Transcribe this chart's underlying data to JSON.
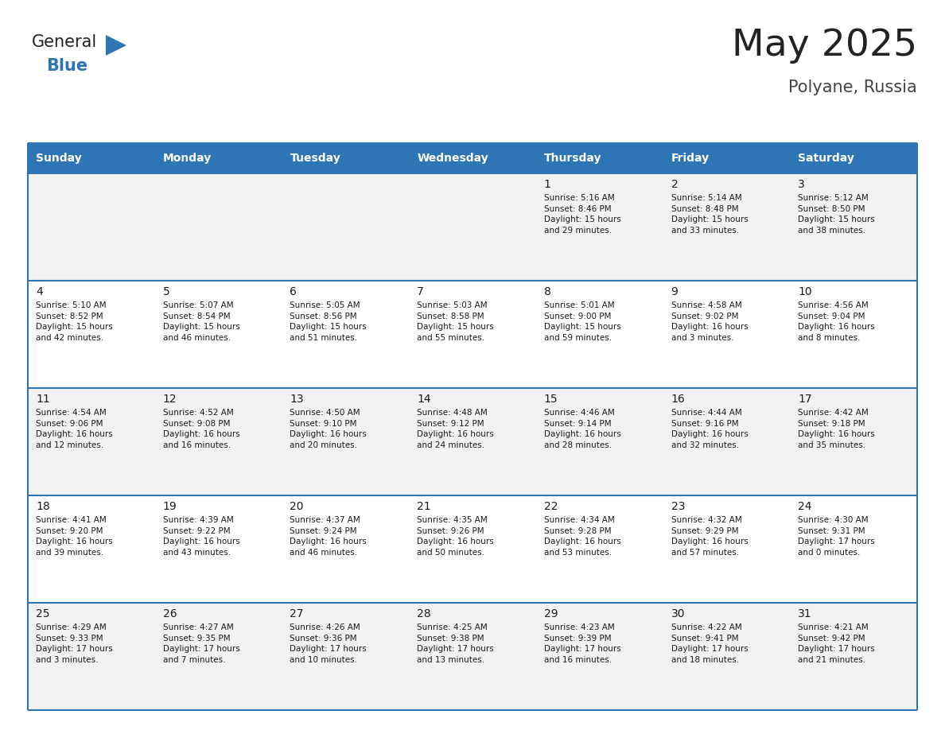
{
  "title": "May 2025",
  "subtitle": "Polyane, Russia",
  "days_of_week": [
    "Sunday",
    "Monday",
    "Tuesday",
    "Wednesday",
    "Thursday",
    "Friday",
    "Saturday"
  ],
  "header_bg": "#2E75B6",
  "header_text": "#FFFFFF",
  "cell_bg_odd": "#F2F2F2",
  "cell_bg_even": "#FFFFFF",
  "cell_text": "#1a1a1a",
  "day_num_color": "#1a1a1a",
  "border_color": "#2E75B6",
  "calendar_data": [
    [
      {
        "day": "",
        "sunrise": "",
        "sunset": "",
        "daylight": ""
      },
      {
        "day": "",
        "sunrise": "",
        "sunset": "",
        "daylight": ""
      },
      {
        "day": "",
        "sunrise": "",
        "sunset": "",
        "daylight": ""
      },
      {
        "day": "",
        "sunrise": "",
        "sunset": "",
        "daylight": ""
      },
      {
        "day": "1",
        "sunrise": "Sunrise: 5:16 AM",
        "sunset": "Sunset: 8:46 PM",
        "daylight": "Daylight: 15 hours\nand 29 minutes."
      },
      {
        "day": "2",
        "sunrise": "Sunrise: 5:14 AM",
        "sunset": "Sunset: 8:48 PM",
        "daylight": "Daylight: 15 hours\nand 33 minutes."
      },
      {
        "day": "3",
        "sunrise": "Sunrise: 5:12 AM",
        "sunset": "Sunset: 8:50 PM",
        "daylight": "Daylight: 15 hours\nand 38 minutes."
      }
    ],
    [
      {
        "day": "4",
        "sunrise": "Sunrise: 5:10 AM",
        "sunset": "Sunset: 8:52 PM",
        "daylight": "Daylight: 15 hours\nand 42 minutes."
      },
      {
        "day": "5",
        "sunrise": "Sunrise: 5:07 AM",
        "sunset": "Sunset: 8:54 PM",
        "daylight": "Daylight: 15 hours\nand 46 minutes."
      },
      {
        "day": "6",
        "sunrise": "Sunrise: 5:05 AM",
        "sunset": "Sunset: 8:56 PM",
        "daylight": "Daylight: 15 hours\nand 51 minutes."
      },
      {
        "day": "7",
        "sunrise": "Sunrise: 5:03 AM",
        "sunset": "Sunset: 8:58 PM",
        "daylight": "Daylight: 15 hours\nand 55 minutes."
      },
      {
        "day": "8",
        "sunrise": "Sunrise: 5:01 AM",
        "sunset": "Sunset: 9:00 PM",
        "daylight": "Daylight: 15 hours\nand 59 minutes."
      },
      {
        "day": "9",
        "sunrise": "Sunrise: 4:58 AM",
        "sunset": "Sunset: 9:02 PM",
        "daylight": "Daylight: 16 hours\nand 3 minutes."
      },
      {
        "day": "10",
        "sunrise": "Sunrise: 4:56 AM",
        "sunset": "Sunset: 9:04 PM",
        "daylight": "Daylight: 16 hours\nand 8 minutes."
      }
    ],
    [
      {
        "day": "11",
        "sunrise": "Sunrise: 4:54 AM",
        "sunset": "Sunset: 9:06 PM",
        "daylight": "Daylight: 16 hours\nand 12 minutes."
      },
      {
        "day": "12",
        "sunrise": "Sunrise: 4:52 AM",
        "sunset": "Sunset: 9:08 PM",
        "daylight": "Daylight: 16 hours\nand 16 minutes."
      },
      {
        "day": "13",
        "sunrise": "Sunrise: 4:50 AM",
        "sunset": "Sunset: 9:10 PM",
        "daylight": "Daylight: 16 hours\nand 20 minutes."
      },
      {
        "day": "14",
        "sunrise": "Sunrise: 4:48 AM",
        "sunset": "Sunset: 9:12 PM",
        "daylight": "Daylight: 16 hours\nand 24 minutes."
      },
      {
        "day": "15",
        "sunrise": "Sunrise: 4:46 AM",
        "sunset": "Sunset: 9:14 PM",
        "daylight": "Daylight: 16 hours\nand 28 minutes."
      },
      {
        "day": "16",
        "sunrise": "Sunrise: 4:44 AM",
        "sunset": "Sunset: 9:16 PM",
        "daylight": "Daylight: 16 hours\nand 32 minutes."
      },
      {
        "day": "17",
        "sunrise": "Sunrise: 4:42 AM",
        "sunset": "Sunset: 9:18 PM",
        "daylight": "Daylight: 16 hours\nand 35 minutes."
      }
    ],
    [
      {
        "day": "18",
        "sunrise": "Sunrise: 4:41 AM",
        "sunset": "Sunset: 9:20 PM",
        "daylight": "Daylight: 16 hours\nand 39 minutes."
      },
      {
        "day": "19",
        "sunrise": "Sunrise: 4:39 AM",
        "sunset": "Sunset: 9:22 PM",
        "daylight": "Daylight: 16 hours\nand 43 minutes."
      },
      {
        "day": "20",
        "sunrise": "Sunrise: 4:37 AM",
        "sunset": "Sunset: 9:24 PM",
        "daylight": "Daylight: 16 hours\nand 46 minutes."
      },
      {
        "day": "21",
        "sunrise": "Sunrise: 4:35 AM",
        "sunset": "Sunset: 9:26 PM",
        "daylight": "Daylight: 16 hours\nand 50 minutes."
      },
      {
        "day": "22",
        "sunrise": "Sunrise: 4:34 AM",
        "sunset": "Sunset: 9:28 PM",
        "daylight": "Daylight: 16 hours\nand 53 minutes."
      },
      {
        "day": "23",
        "sunrise": "Sunrise: 4:32 AM",
        "sunset": "Sunset: 9:29 PM",
        "daylight": "Daylight: 16 hours\nand 57 minutes."
      },
      {
        "day": "24",
        "sunrise": "Sunrise: 4:30 AM",
        "sunset": "Sunset: 9:31 PM",
        "daylight": "Daylight: 17 hours\nand 0 minutes."
      }
    ],
    [
      {
        "day": "25",
        "sunrise": "Sunrise: 4:29 AM",
        "sunset": "Sunset: 9:33 PM",
        "daylight": "Daylight: 17 hours\nand 3 minutes."
      },
      {
        "day": "26",
        "sunrise": "Sunrise: 4:27 AM",
        "sunset": "Sunset: 9:35 PM",
        "daylight": "Daylight: 17 hours\nand 7 minutes."
      },
      {
        "day": "27",
        "sunrise": "Sunrise: 4:26 AM",
        "sunset": "Sunset: 9:36 PM",
        "daylight": "Daylight: 17 hours\nand 10 minutes."
      },
      {
        "day": "28",
        "sunrise": "Sunrise: 4:25 AM",
        "sunset": "Sunset: 9:38 PM",
        "daylight": "Daylight: 17 hours\nand 13 minutes."
      },
      {
        "day": "29",
        "sunrise": "Sunrise: 4:23 AM",
        "sunset": "Sunset: 9:39 PM",
        "daylight": "Daylight: 17 hours\nand 16 minutes."
      },
      {
        "day": "30",
        "sunrise": "Sunrise: 4:22 AM",
        "sunset": "Sunset: 9:41 PM",
        "daylight": "Daylight: 17 hours\nand 18 minutes."
      },
      {
        "day": "31",
        "sunrise": "Sunrise: 4:21 AM",
        "sunset": "Sunset: 9:42 PM",
        "daylight": "Daylight: 17 hours\nand 21 minutes."
      }
    ]
  ],
  "logo_general_color": "#222222",
  "logo_blue_color": "#2E75B6",
  "title_color": "#222222",
  "subtitle_color": "#444444",
  "fig_width": 11.88,
  "fig_height": 9.18,
  "dpi": 100
}
